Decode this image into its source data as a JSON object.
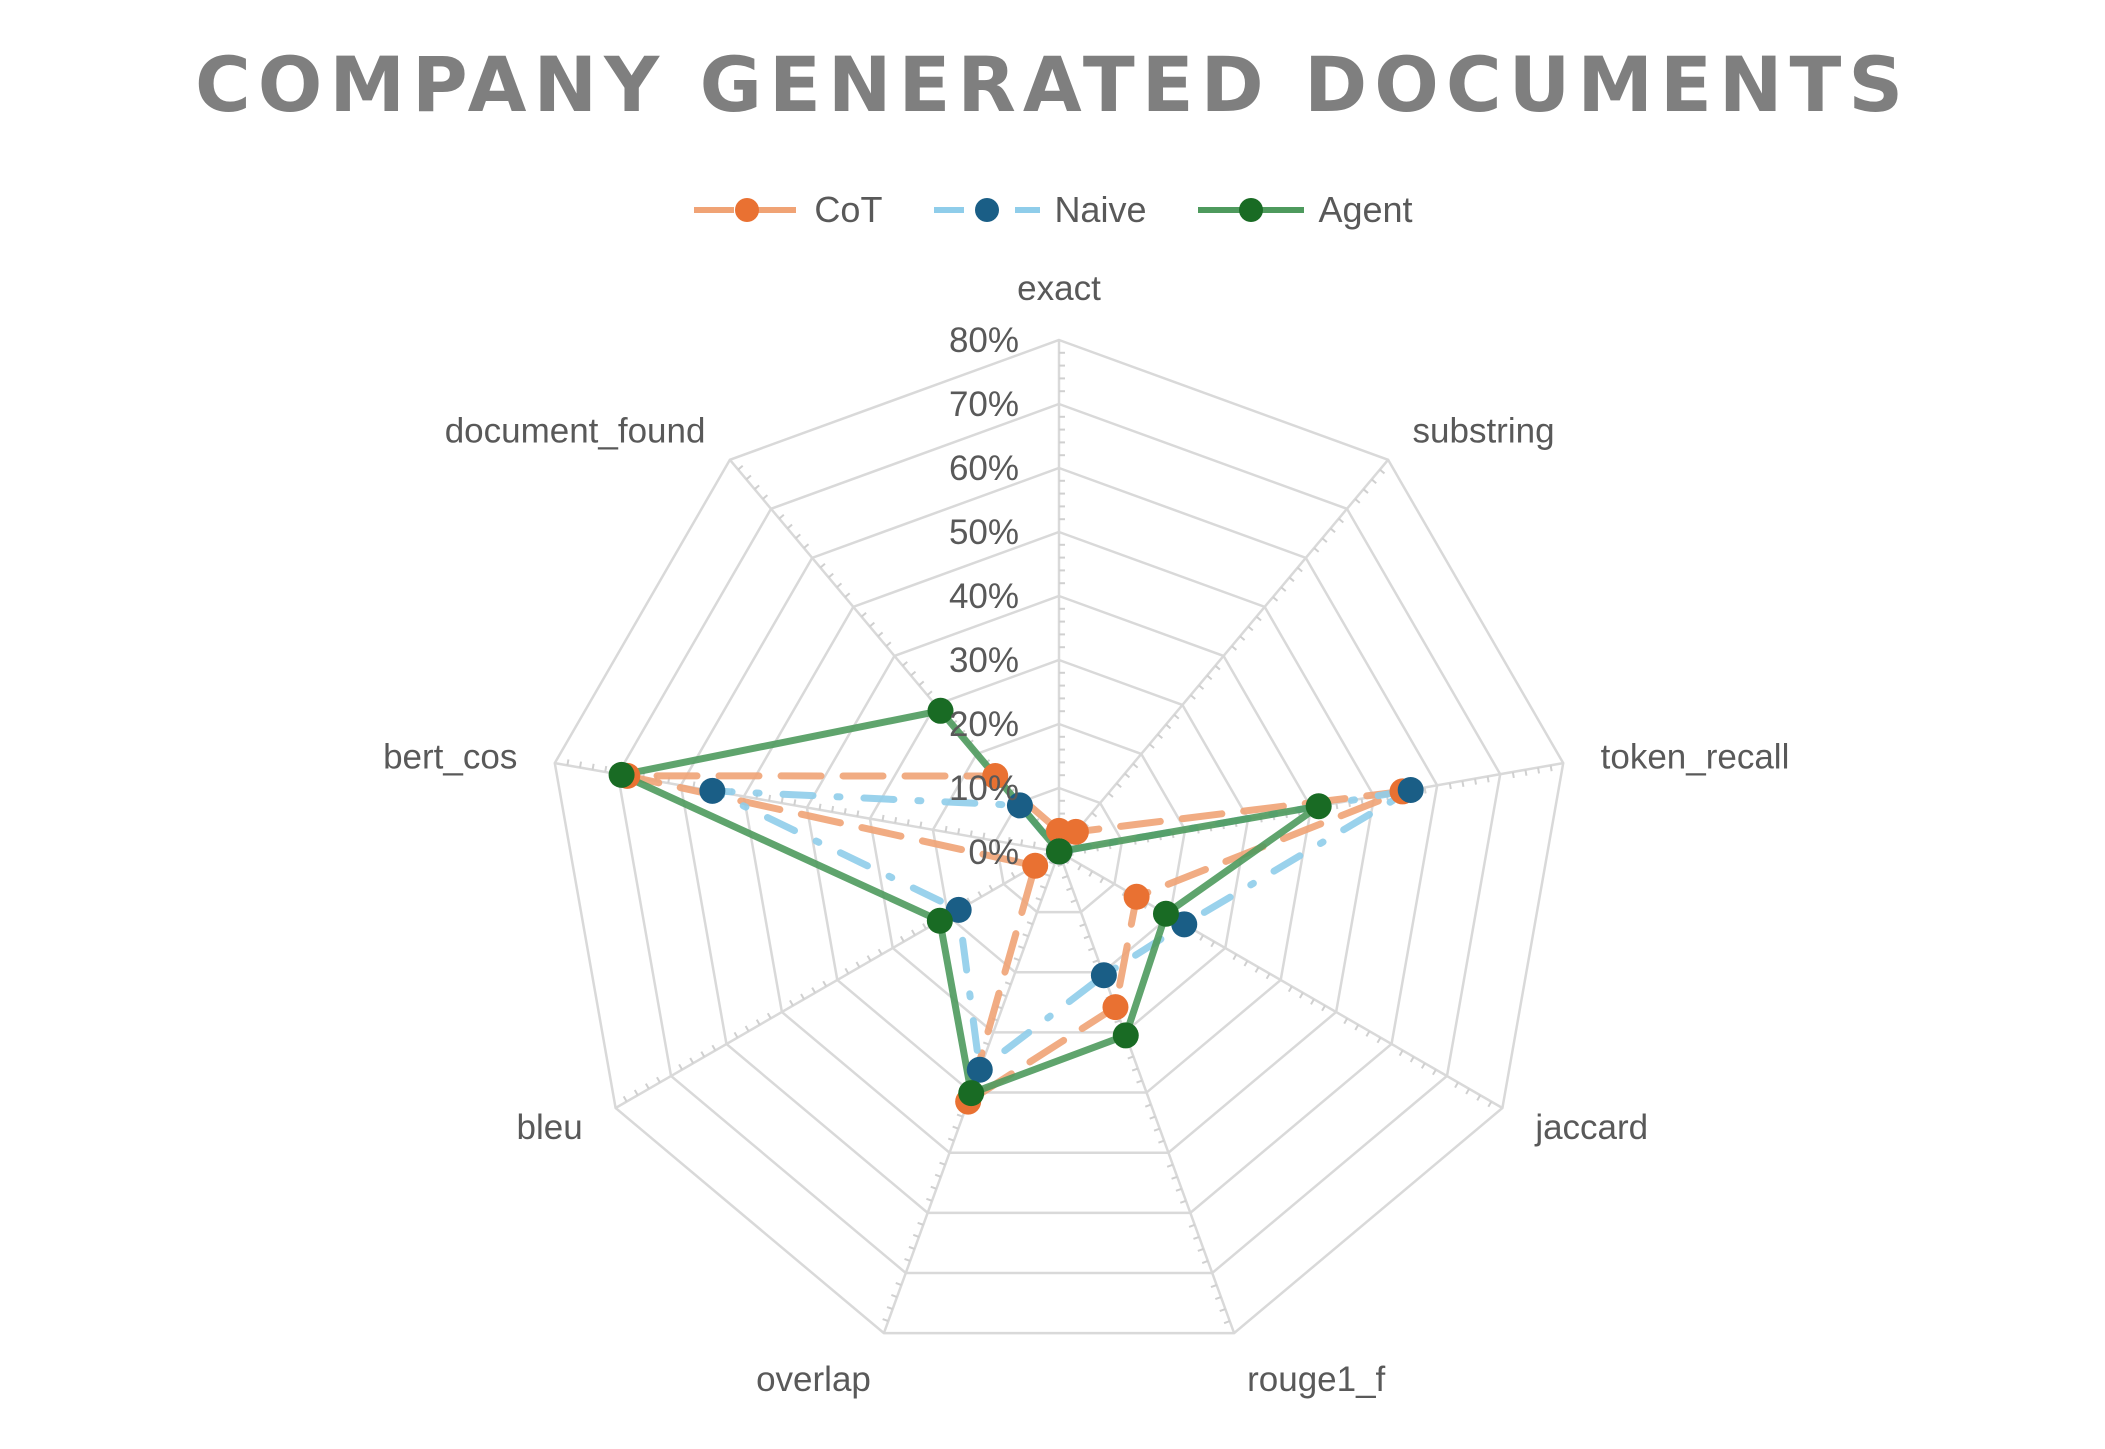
{
  "chart_data": {
    "type": "radar",
    "title": "COMPANY GENERATED DOCUMENTS",
    "categories": [
      "exact",
      "substring",
      "token_recall",
      "jaccard",
      "rouge1_f",
      "overlap",
      "bleu",
      "bert_cos",
      "document_found"
    ],
    "tick_labels": [
      "0%",
      "10%",
      "20%",
      "30%",
      "40%",
      "50%",
      "60%",
      "70%",
      "80%"
    ],
    "rmin": 0,
    "rmax": 80,
    "grid": true,
    "legend_position": "top",
    "series": [
      {
        "name": "CoT",
        "color": "#E97132",
        "line_color": "#F0A375",
        "dash": "40 22",
        "values": [
          3.3,
          4.1,
          54.5,
          14.0,
          25.8,
          41.5,
          4.3,
          68.5,
          15.5
        ]
      },
      {
        "name": "Naive",
        "color": "#1A5E86",
        "line_color": "#8FCDEA",
        "dash": "30 24 3 24",
        "values": [
          0.1,
          0.1,
          55.8,
          22.6,
          20.5,
          36.2,
          18.1,
          55.0,
          9.5
        ]
      },
      {
        "name": "Agent",
        "color": "#196B24",
        "line_color": "#4E9A5D",
        "dash": "",
        "values": [
          0.1,
          0.1,
          41.2,
          19.3,
          30.5,
          40.1,
          21.5,
          69.4,
          28.8
        ]
      }
    ]
  }
}
